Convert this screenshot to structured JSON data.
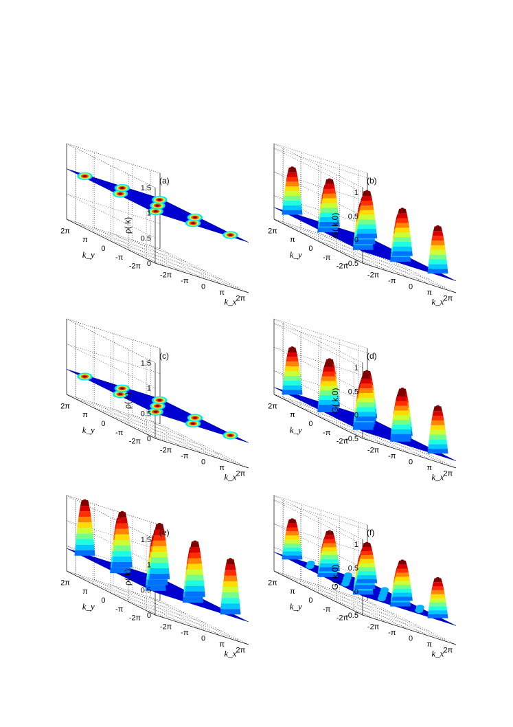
{
  "chart_data": [
    {
      "type": "surface",
      "panel": "(a)",
      "zlabel": "ρ( k)",
      "xlabel": "k_x",
      "ylabel": "k_y",
      "zticks": [
        "0",
        "0.5",
        "1",
        "1.5"
      ],
      "zlim": [
        0,
        1.5
      ],
      "xticks": [
        "-2π",
        "-π",
        "0",
        "π",
        "2π"
      ],
      "yticks": [
        "-2π",
        "-π",
        "0",
        "π",
        "2π"
      ],
      "baseline": 1.0,
      "peak_height": 0.0,
      "spots": true,
      "peaks": [
        [
          -2,
          -2
        ],
        [
          -2,
          0
        ],
        [
          -2,
          2
        ],
        [
          0,
          -2
        ],
        [
          0,
          0
        ],
        [
          0,
          2
        ],
        [
          2,
          -2
        ],
        [
          2,
          0
        ],
        [
          2,
          2
        ]
      ]
    },
    {
      "type": "surface",
      "panel": "(b)",
      "zlabel": "G( k,0)",
      "xlabel": "k_x",
      "ylabel": "k_y",
      "zticks": [
        "-0.5",
        "0",
        "0.5",
        "1"
      ],
      "zlim": [
        -0.5,
        1.1
      ],
      "xticks": [
        "-2π",
        "-π",
        "0",
        "π",
        "2π"
      ],
      "yticks": [
        "-2π",
        "-π",
        "0",
        "π",
        "2π"
      ],
      "baseline": -0.25,
      "peak_height": 1.0,
      "spots": false,
      "peaks": [
        [
          -2,
          -2
        ],
        [
          -2,
          0
        ],
        [
          -2,
          2
        ],
        [
          0,
          -2
        ],
        [
          0,
          0
        ],
        [
          0,
          2
        ],
        [
          2,
          -2
        ],
        [
          2,
          0
        ],
        [
          2,
          2
        ]
      ]
    },
    {
      "type": "surface",
      "panel": "(c)",
      "zlabel": "ρ( k)",
      "xlabel": "k_x",
      "ylabel": "k_y",
      "zticks": [
        "0",
        "0.5",
        "1",
        "1.5"
      ],
      "zlim": [
        0,
        1.5
      ],
      "xticks": [
        "-2π",
        "-π",
        "0",
        "π",
        "2π"
      ],
      "yticks": [
        "-2π",
        "-π",
        "0",
        "π",
        "2π"
      ],
      "baseline": 0.5,
      "peak_height": 0.0,
      "spots": true,
      "peaks": [
        [
          -2,
          -2
        ],
        [
          -2,
          0
        ],
        [
          -2,
          2
        ],
        [
          0,
          -2
        ],
        [
          0,
          0
        ],
        [
          0,
          2
        ],
        [
          2,
          -2
        ],
        [
          2,
          0
        ],
        [
          2,
          2
        ]
      ]
    },
    {
      "type": "surface",
      "panel": "(d)",
      "zlabel": "G( k,0)",
      "xlabel": "k_x",
      "ylabel": "k_y",
      "zticks": [
        "-0.5",
        "0",
        "0.5",
        "1"
      ],
      "zlim": [
        -0.5,
        1.1
      ],
      "xticks": [
        "-2π",
        "-π",
        "0",
        "π",
        "2π"
      ],
      "yticks": [
        "-2π",
        "-π",
        "0",
        "π",
        "2π"
      ],
      "baseline": -0.35,
      "peak_height": 1.0,
      "spots": false,
      "peaks": [
        [
          -2,
          -2
        ],
        [
          -2,
          0
        ],
        [
          -2,
          2
        ],
        [
          0,
          -2
        ],
        [
          0,
          0
        ],
        [
          0,
          2
        ],
        [
          2,
          -2
        ],
        [
          2,
          0
        ],
        [
          2,
          2
        ],
        [
          -1,
          -1
        ],
        [
          -1,
          1
        ],
        [
          1,
          -1
        ],
        [
          1,
          1
        ]
      ]
    },
    {
      "type": "surface",
      "panel": "(e)",
      "zlabel": "ρ( k)",
      "xlabel": "k_x",
      "ylabel": "k_y",
      "zticks": [
        "0",
        "0.5",
        "1",
        "1.5"
      ],
      "zlim": [
        0,
        1.5
      ],
      "xticks": [
        "-2π",
        "-π",
        "0",
        "π",
        "2π"
      ],
      "yticks": [
        "-2π",
        "-π",
        "0",
        "π",
        "2π"
      ],
      "baseline": 0.45,
      "peak_height": 1.1,
      "spots": false,
      "peaks": [
        [
          -2,
          -2
        ],
        [
          -2,
          0
        ],
        [
          -2,
          2
        ],
        [
          0,
          -2
        ],
        [
          0,
          0
        ],
        [
          0,
          2
        ],
        [
          2,
          -2
        ],
        [
          2,
          0
        ],
        [
          2,
          2
        ]
      ]
    },
    {
      "type": "surface",
      "panel": "(f)",
      "zlabel": "G( k,0)",
      "xlabel": "k_x",
      "ylabel": "k_y",
      "zticks": [
        "-0.5",
        "0",
        "0.5",
        "1"
      ],
      "zlim": [
        -0.5,
        1.1
      ],
      "xticks": [
        "-2π",
        "-π",
        "0",
        "π",
        "2π"
      ],
      "yticks": [
        "-2π",
        "-π",
        "0",
        "π",
        "2π"
      ],
      "baseline": -0.1,
      "peak_height": 0.85,
      "spots": false,
      "bumps": true,
      "peaks": [
        [
          -2,
          -2
        ],
        [
          -2,
          0
        ],
        [
          -2,
          2
        ],
        [
          0,
          -2
        ],
        [
          0,
          0
        ],
        [
          0,
          2
        ],
        [
          2,
          -2
        ],
        [
          2,
          0
        ],
        [
          2,
          2
        ]
      ]
    }
  ]
}
